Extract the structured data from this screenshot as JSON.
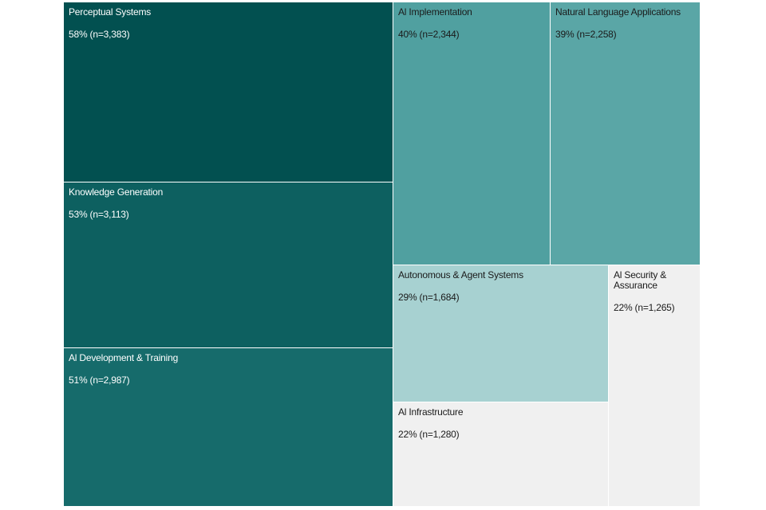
{
  "chart_data": {
    "type": "treemap",
    "title": "",
    "items": [
      {
        "name": "Perceptual Systems",
        "percent": 58,
        "n": 3383,
        "label": "Perceptual Systems",
        "value_label": "58% (n=3,383)",
        "color": "#025050"
      },
      {
        "name": "Knowledge Generation",
        "percent": 53,
        "n": 3113,
        "label": "Knowledge Generation",
        "value_label": "53% (n=3,113)",
        "color": "#0d6060"
      },
      {
        "name": "AI Development & Training",
        "percent": 51,
        "n": 2987,
        "label": "Al Development & Training",
        "value_label": "51% (n=2,987)",
        "color": "#166b6b"
      },
      {
        "name": "AI Implementation",
        "percent": 40,
        "n": 2344,
        "label": "Al Implementation",
        "value_label": "40% (n=2,344)",
        "color": "#50a0a0"
      },
      {
        "name": "Natural Language Applications",
        "percent": 39,
        "n": 2258,
        "label": "Natural Language Applications",
        "value_label": "39% (n=2,258)",
        "color": "#5aa6a6"
      },
      {
        "name": "Autonomous & Agent Systems",
        "percent": 29,
        "n": 1684,
        "label": "Autonomous & Agent Systems",
        "value_label": "29% (n=1,684)",
        "color": "#a7d1d1"
      },
      {
        "name": "AI Infrastructure",
        "percent": 22,
        "n": 1280,
        "label": "Al Infrastructure",
        "value_label": "22% (n=1,280)",
        "color": "#f0f0f0"
      },
      {
        "name": "AI Security & Assurance",
        "percent": 22,
        "n": 1265,
        "label": "Al Security & Assurance",
        "value_label": "22% (n=1,265)",
        "color": "#f0f0f0"
      }
    ]
  }
}
